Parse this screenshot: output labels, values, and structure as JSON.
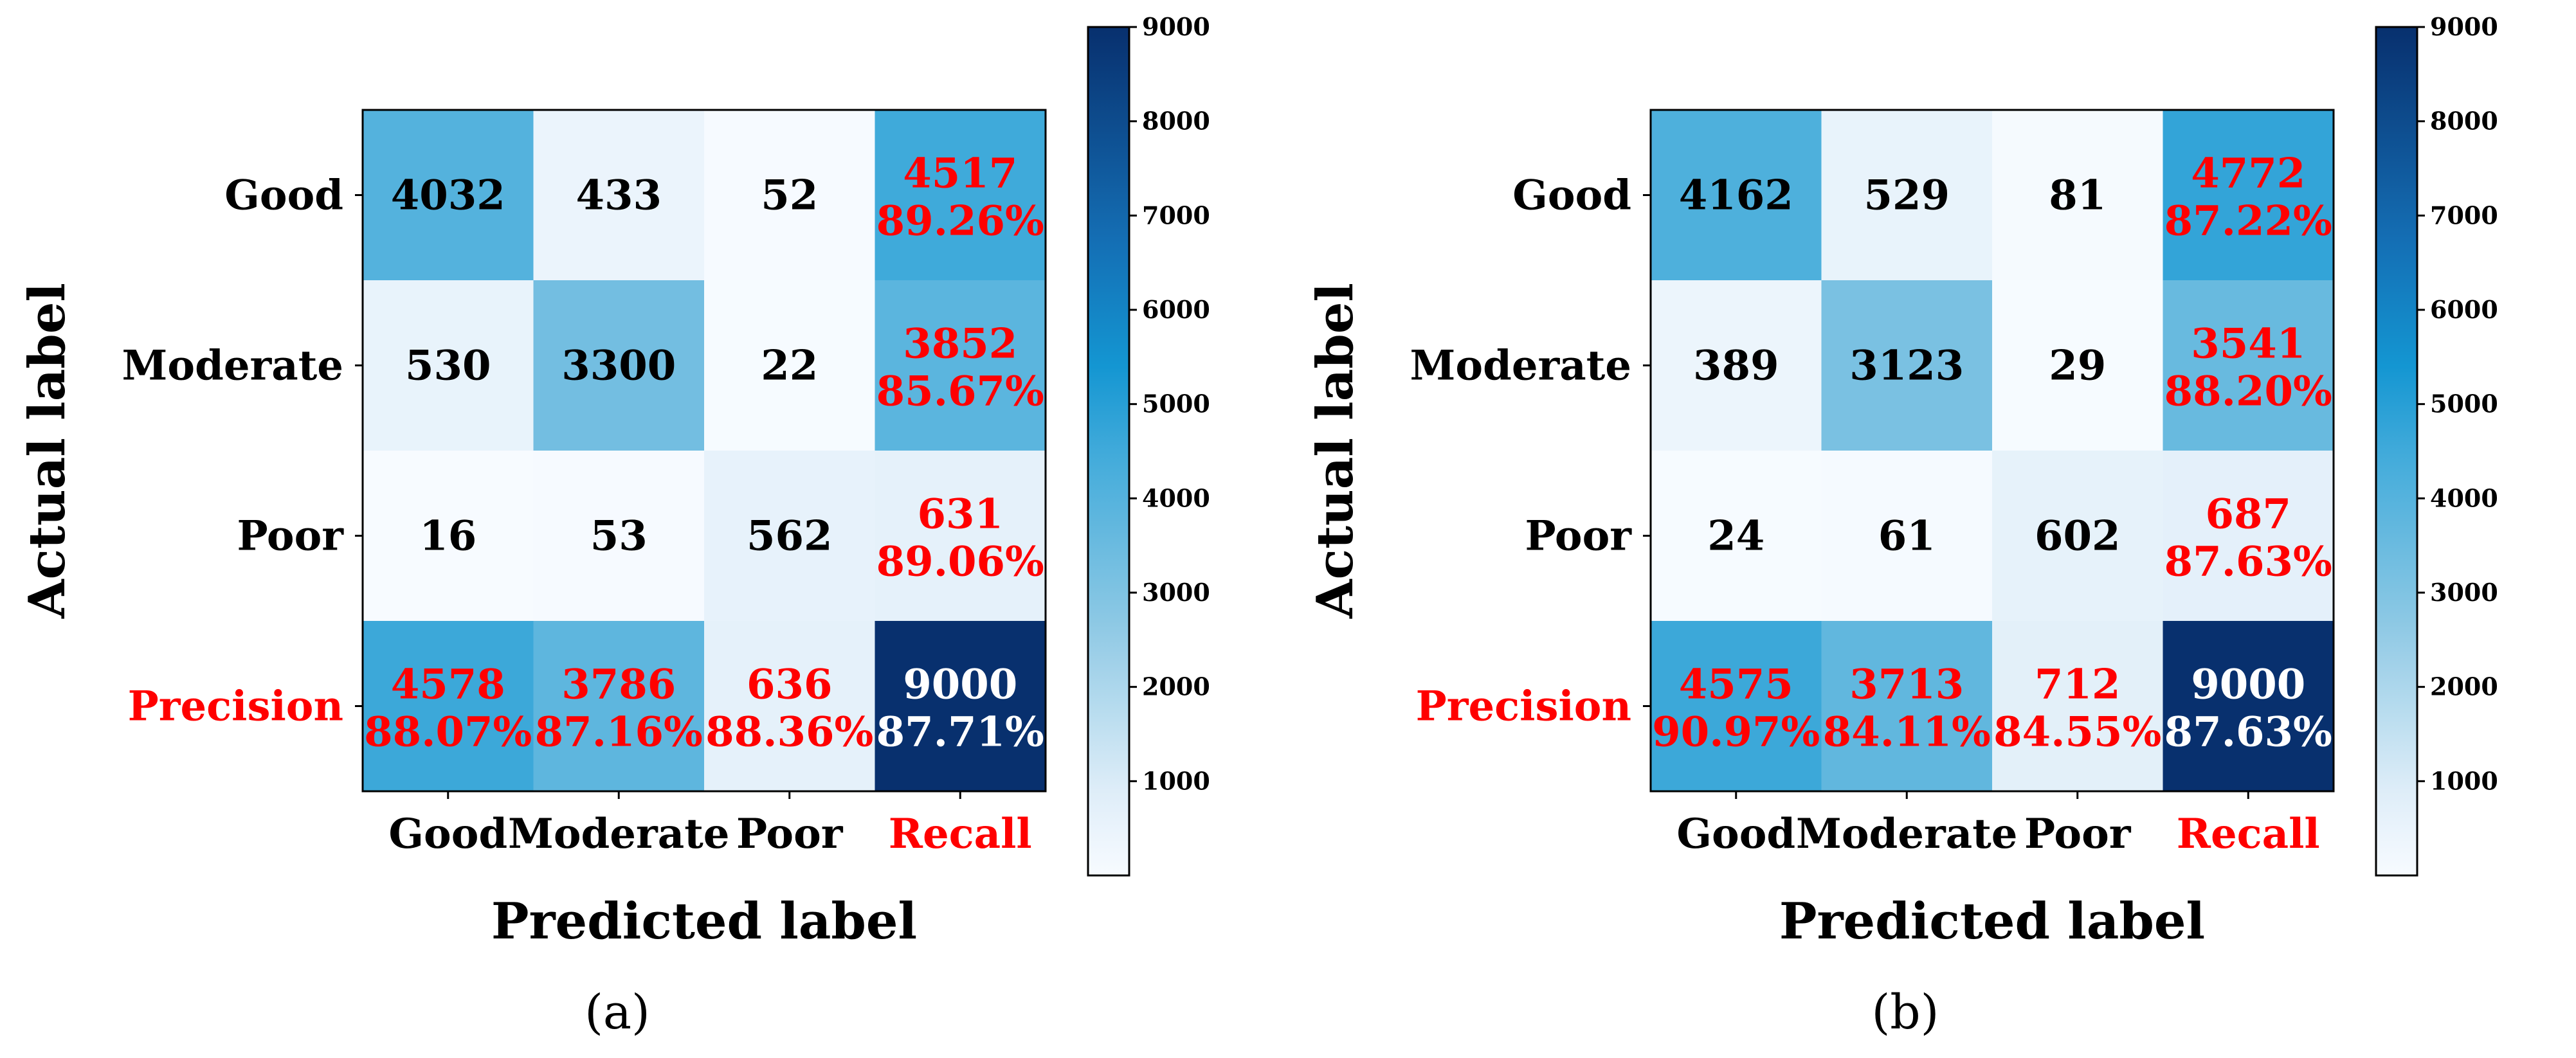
{
  "chart_data": [
    {
      "type": "heatmap",
      "panel_label": "(a)",
      "xlabel": "Predicted label",
      "ylabel": "Actual label",
      "x_categories": [
        "Good",
        "Moderate",
        "Poor",
        "Recall"
      ],
      "y_categories": [
        "Good",
        "Moderate",
        "Poor",
        "Precision"
      ],
      "summary_label_color": "#ff0000",
      "matrix": [
        [
          4032,
          433,
          52
        ],
        [
          530,
          3300,
          22
        ],
        [
          16,
          53,
          562
        ]
      ],
      "recall": [
        {
          "total": "4517",
          "pct": "89.26%",
          "value": 4517
        },
        {
          "total": "3852",
          "pct": "85.67%",
          "value": 3852
        },
        {
          "total": "631",
          "pct": "89.06%",
          "value": 631
        }
      ],
      "precision": [
        {
          "total": "4578",
          "pct": "88.07%",
          "value": 4578
        },
        {
          "total": "3786",
          "pct": "87.16%",
          "value": 3786
        },
        {
          "total": "636",
          "pct": "88.36%",
          "value": 636
        }
      ],
      "overall": {
        "total": "9000",
        "pct": "87.71%",
        "value": 9000
      },
      "colorbar": {
        "min": 0,
        "max": 9000,
        "ticks": [
          1000,
          2000,
          3000,
          4000,
          5000,
          6000,
          7000,
          8000,
          9000
        ],
        "colormap": "Blues"
      }
    },
    {
      "type": "heatmap",
      "panel_label": "(b)",
      "xlabel": "Predicted label",
      "ylabel": "Actual label",
      "x_categories": [
        "Good",
        "Moderate",
        "Poor",
        "Recall"
      ],
      "y_categories": [
        "Good",
        "Moderate",
        "Poor",
        "Precision"
      ],
      "summary_label_color": "#ff0000",
      "matrix": [
        [
          4162,
          529,
          81
        ],
        [
          389,
          3123,
          29
        ],
        [
          24,
          61,
          602
        ]
      ],
      "recall": [
        {
          "total": "4772",
          "pct": "87.22%",
          "value": 4772
        },
        {
          "total": "3541",
          "pct": "88.20%",
          "value": 3541
        },
        {
          "total": "687",
          "pct": "87.63%",
          "value": 687
        }
      ],
      "precision": [
        {
          "total": "4575",
          "pct": "90.97%",
          "value": 4575
        },
        {
          "total": "3713",
          "pct": "84.11%",
          "value": 3713
        },
        {
          "total": "712",
          "pct": "84.55%",
          "value": 712
        }
      ],
      "overall": {
        "total": "9000",
        "pct": "87.63%",
        "value": 9000
      },
      "colorbar": {
        "min": 0,
        "max": 9000,
        "ticks": [
          1000,
          2000,
          3000,
          4000,
          5000,
          6000,
          7000,
          8000,
          9000
        ],
        "colormap": "Blues"
      }
    }
  ]
}
